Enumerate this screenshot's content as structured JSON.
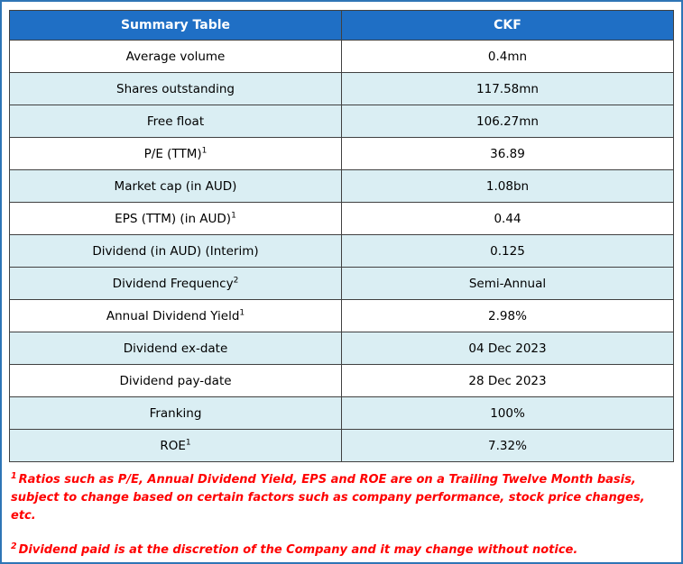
{
  "colors": {
    "header_bg": "#1F6FC5",
    "header_text": "#FFFFFF",
    "row_shaded_bg": "#DAEEF3",
    "grid_border": "#404040",
    "outer_border": "#2E75B6",
    "footnote_text": "#FF0000"
  },
  "table": {
    "header": {
      "left": "Summary Table",
      "right": "CKF"
    },
    "rows": [
      {
        "label": "Average volume",
        "sup": "",
        "value": "0.4mn",
        "shaded": false
      },
      {
        "label": "Shares outstanding",
        "sup": "",
        "value": "117.58mn",
        "shaded": true
      },
      {
        "label": "Free float",
        "sup": "",
        "value": "106.27mn",
        "shaded": true
      },
      {
        "label": "P/E (TTM)",
        "sup": "1",
        "value": "36.89",
        "shaded": false
      },
      {
        "label": "Market cap (in AUD)",
        "sup": "",
        "value": "1.08bn",
        "shaded": true
      },
      {
        "label": "EPS (TTM) (in AUD)",
        "sup": "1",
        "value": "0.44",
        "shaded": false
      },
      {
        "label": "Dividend (in AUD) (Interim)",
        "sup": "",
        "value": "0.125",
        "shaded": true
      },
      {
        "label": "Dividend Frequency",
        "sup": "2",
        "value": "Semi-Annual",
        "shaded": true
      },
      {
        "label": "Annual Dividend Yield",
        "sup": "1",
        "value": "2.98%",
        "shaded": false
      },
      {
        "label": "Dividend ex-date",
        "sup": "",
        "value": "04 Dec 2023",
        "shaded": true
      },
      {
        "label": "Dividend pay-date",
        "sup": "",
        "value": "28 Dec 2023",
        "shaded": false
      },
      {
        "label": "Franking",
        "sup": "",
        "value": "100%",
        "shaded": true
      },
      {
        "label": "ROE",
        "sup": "1",
        "value": "7.32%",
        "shaded": true
      }
    ]
  },
  "footnotes": [
    {
      "marker": "1",
      "text": "Ratios such as P/E, Annual Dividend Yield, EPS and ROE are on a Trailing Twelve Month basis, subject to change based on certain factors such as company performance, stock price changes, etc."
    },
    {
      "marker": "2",
      "text": "Dividend paid is at the discretion of the Company and it may change without notice."
    }
  ]
}
